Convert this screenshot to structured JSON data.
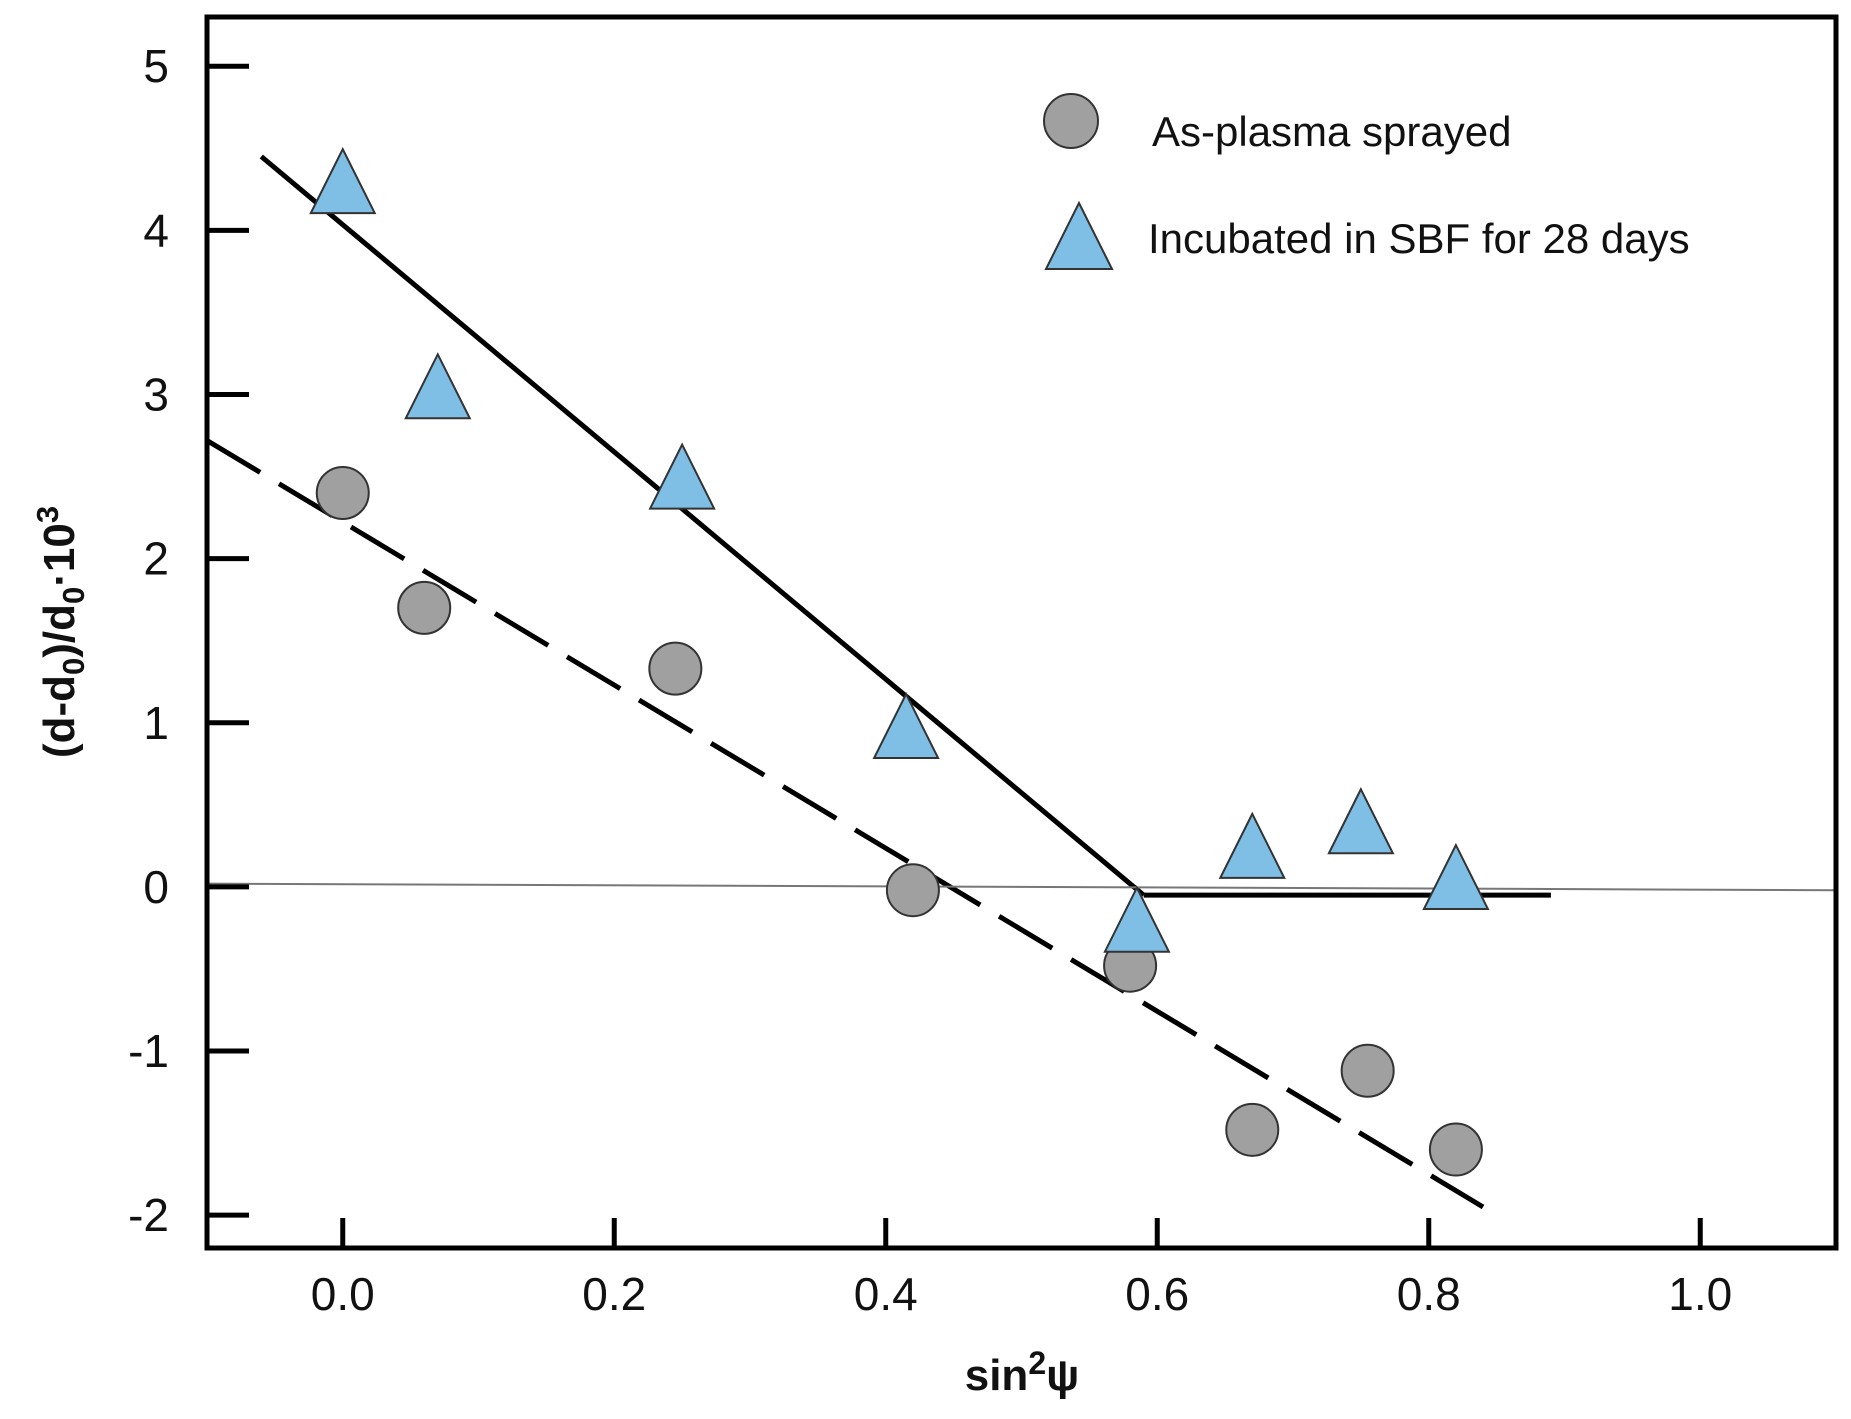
{
  "chart_data": {
    "type": "scatter",
    "title": "",
    "xlabel": {
      "base": "sin",
      "sup": "2",
      "tail": "ψ"
    },
    "ylabel": {
      "p1": "(d-d",
      "s1": "0",
      "p2": ")/d",
      "s2": "0",
      "p3": "·10",
      "sup": "3"
    },
    "xlim": [
      -0.1,
      1.1
    ],
    "ylim": [
      -2.2,
      5.3
    ],
    "x_ticks": [
      0.0,
      0.2,
      0.4,
      0.6,
      0.8,
      1.0
    ],
    "x_tick_labels": [
      "0.0",
      "0.2",
      "0.4",
      "0.6",
      "0.8",
      "1.0"
    ],
    "y_ticks": [
      -2,
      -1,
      0,
      1,
      2,
      3,
      4,
      5
    ],
    "y_tick_labels": [
      "-2",
      "-1",
      "0",
      "1",
      "2",
      "3",
      "4",
      "5"
    ],
    "grid": false,
    "legend_position": "top-right",
    "series": [
      {
        "name": "As-plasma sprayed",
        "marker": "circle",
        "color": "#a0a0a0",
        "x": [
          0.0,
          0.06,
          0.245,
          0.42,
          0.58,
          0.67,
          0.755,
          0.82
        ],
        "y": [
          2.4,
          1.7,
          1.33,
          -0.02,
          -0.48,
          -1.48,
          -1.12,
          -1.6
        ]
      },
      {
        "name": "Incubated in SBF for 28 days",
        "marker": "triangle",
        "color": "#7fbfe5",
        "x": [
          0.0,
          0.07,
          0.25,
          0.415,
          0.585,
          0.67,
          0.75,
          0.82
        ],
        "y": [
          4.3,
          3.05,
          2.5,
          0.98,
          -0.2,
          0.25,
          0.4,
          0.06
        ]
      }
    ],
    "fit_lines": [
      {
        "name": "SBF linear fit (solid)",
        "style": "solid",
        "color": "#000000",
        "x": [
          -0.06,
          0.59
        ],
        "y": [
          4.45,
          -0.05
        ]
      },
      {
        "name": "SBF plateau (solid)",
        "style": "solid",
        "color": "#000000",
        "x": [
          0.59,
          0.89
        ],
        "y": [
          -0.05,
          -0.05
        ]
      },
      {
        "name": "As-plasma fit (dashed)",
        "style": "dashed",
        "color": "#000000",
        "x": [
          -0.1,
          0.84
        ],
        "y": [
          2.72,
          -1.95
        ]
      },
      {
        "name": "Zero reference line",
        "style": "solid",
        "color": "#777777",
        "x": [
          -0.1,
          1.1
        ],
        "y": [
          0.02,
          -0.02
        ]
      }
    ]
  }
}
